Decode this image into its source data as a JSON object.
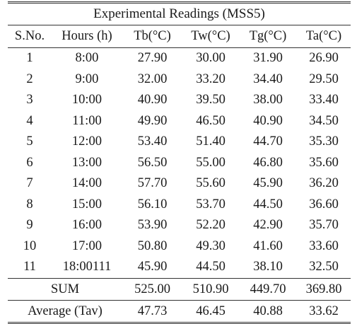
{
  "table": {
    "title": "Experimental Readings (MSS5)",
    "headers": [
      "S.No.",
      "Hours (h)",
      "Tb(°C)",
      "Tw(°C)",
      "Tg(°C)",
      "Ta(°C)"
    ],
    "rows": [
      [
        "1",
        "8:00",
        "27.90",
        "30.00",
        "31.90",
        "26.90"
      ],
      [
        "2",
        "9:00",
        "32.00",
        "33.20",
        "34.40",
        "29.50"
      ],
      [
        "3",
        "10:00",
        "40.90",
        "39.50",
        "38.00",
        "33.40"
      ],
      [
        "4",
        "11:00",
        "49.90",
        "46.50",
        "40.90",
        "34.50"
      ],
      [
        "5",
        "12:00",
        "53.40",
        "51.40",
        "44.70",
        "35.30"
      ],
      [
        "6",
        "13:00",
        "56.50",
        "55.00",
        "46.80",
        "35.60"
      ],
      [
        "7",
        "14:00",
        "57.70",
        "55.60",
        "45.90",
        "36.20"
      ],
      [
        "8",
        "15:00",
        "56.10",
        "53.70",
        "44.50",
        "36.60"
      ],
      [
        "9",
        "16:00",
        "53.90",
        "52.20",
        "42.90",
        "35.70"
      ],
      [
        "10",
        "17:00",
        "50.80",
        "49.30",
        "41.60",
        "33.60"
      ],
      [
        "11",
        "18:00111",
        "45.90",
        "44.50",
        "38.10",
        "32.50"
      ]
    ],
    "sum": {
      "label": "SUM",
      "values": [
        "525.00",
        "510.90",
        "449.70",
        "369.80"
      ]
    },
    "average": {
      "label": "Average (Tav)",
      "values": [
        "47.73",
        "46.45",
        "40.88",
        "33.62"
      ]
    }
  }
}
